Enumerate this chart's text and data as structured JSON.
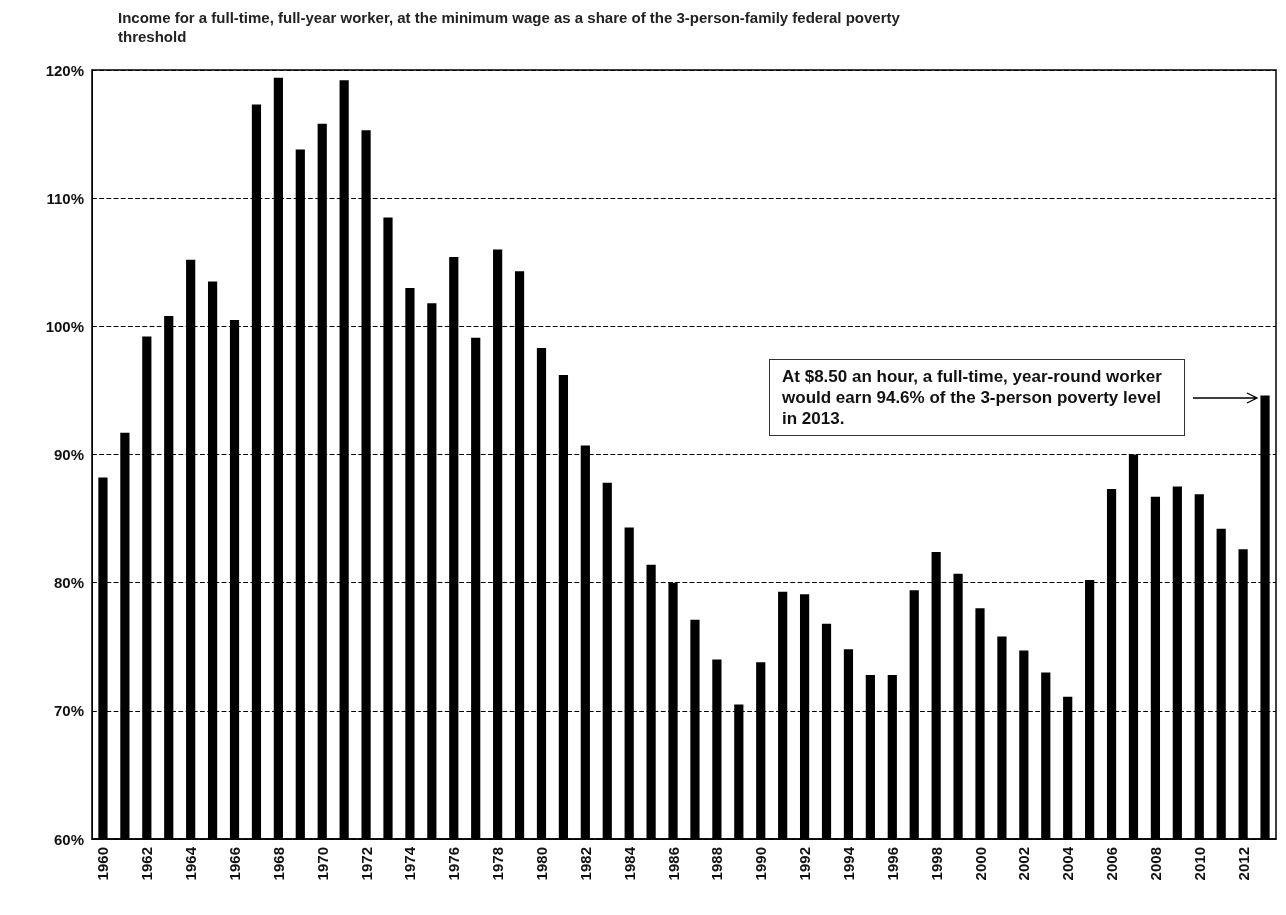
{
  "chart_data": {
    "type": "bar",
    "title": "Income for a full-time, full-year worker, at the minimum wage as a share of the 3-person-family federal poverty threshold",
    "categories": [
      "1960",
      null,
      "1962",
      null,
      "1964",
      null,
      "1966",
      null,
      "1968",
      null,
      "1970",
      null,
      "1972",
      null,
      "1974",
      null,
      "1976",
      null,
      "1978",
      null,
      "1980",
      null,
      "1982",
      null,
      "1984",
      null,
      "1986",
      null,
      "1988",
      null,
      "1990",
      null,
      "1992",
      null,
      "1994",
      null,
      "1996",
      null,
      "1998",
      null,
      "2000",
      null,
      "2002",
      null,
      "2004",
      null,
      "2006",
      null,
      "2008",
      null,
      "2010",
      null,
      "2012",
      null
    ],
    "values": [
      88.2,
      91.7,
      99.2,
      100.8,
      105.2,
      103.5,
      100.5,
      117.3,
      119.4,
      113.8,
      115.8,
      119.2,
      115.3,
      108.5,
      103.0,
      101.8,
      105.4,
      99.1,
      106.0,
      104.3,
      98.3,
      96.2,
      90.7,
      87.8,
      84.3,
      81.4,
      80.0,
      77.1,
      74.0,
      70.5,
      73.8,
      79.3,
      79.1,
      76.8,
      74.8,
      72.8,
      72.8,
      79.4,
      82.4,
      80.7,
      78.0,
      75.8,
      74.7,
      73.0,
      71.1,
      80.2,
      87.3,
      90.0,
      86.7,
      87.5,
      86.9,
      84.2,
      82.6,
      94.6
    ],
    "color": "#000000",
    "ylim": [
      60,
      120
    ],
    "yticks": [
      {
        "value": 60,
        "label": "60%"
      },
      {
        "value": 70,
        "label": "70%"
      },
      {
        "value": 80,
        "label": "80%"
      },
      {
        "value": 90,
        "label": "90%"
      },
      {
        "value": 100,
        "label": "100%"
      },
      {
        "value": 110,
        "label": "110%"
      },
      {
        "value": 120,
        "label": "120%"
      }
    ],
    "grid": "y",
    "annotations": [
      "At $8.50 an hour, a full-time, year-round worker would earn 94.6% of the 3-person poverty level in 2013."
    ]
  }
}
